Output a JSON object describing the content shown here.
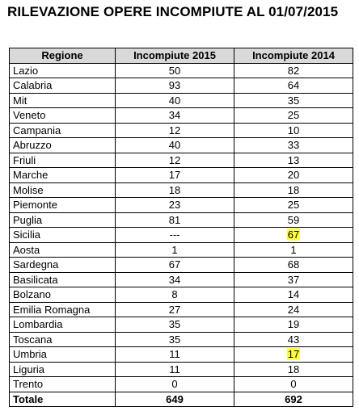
{
  "title": "RILEVAZIONE OPERE INCOMPIUTE AL 01/07/2015",
  "highlight_color": "#ffff44",
  "header_color": "#d9d9d9",
  "table": {
    "headers": [
      "Regione",
      "Incompiute 2015",
      "Incompiute 2014"
    ],
    "rows": [
      {
        "region": "Lazio",
        "v2015": "50",
        "v2014": "82",
        "highlight2014": false
      },
      {
        "region": "Calabria",
        "v2015": "93",
        "v2014": "64",
        "highlight2014": false
      },
      {
        "region": "Mit",
        "v2015": "40",
        "v2014": "35",
        "highlight2014": false
      },
      {
        "region": "Veneto",
        "v2015": "34",
        "v2014": "25",
        "highlight2014": false
      },
      {
        "region": "Campania",
        "v2015": "12",
        "v2014": "10",
        "highlight2014": false
      },
      {
        "region": "Abruzzo",
        "v2015": "40",
        "v2014": "33",
        "highlight2014": false
      },
      {
        "region": "Friuli",
        "v2015": "12",
        "v2014": "13",
        "highlight2014": false
      },
      {
        "region": "Marche",
        "v2015": "17",
        "v2014": "20",
        "highlight2014": false
      },
      {
        "region": "Molise",
        "v2015": "18",
        "v2014": "18",
        "highlight2014": false
      },
      {
        "region": "Piemonte",
        "v2015": "23",
        "v2014": "25",
        "highlight2014": false
      },
      {
        "region": "Puglia",
        "v2015": "81",
        "v2014": "59",
        "highlight2014": false
      },
      {
        "region": "Sicilia",
        "v2015": "---",
        "v2014": "67",
        "highlight2014": true
      },
      {
        "region": "Aosta",
        "v2015": "1",
        "v2014": "1",
        "highlight2014": false
      },
      {
        "region": "Sardegna",
        "v2015": "67",
        "v2014": "68",
        "highlight2014": false
      },
      {
        "region": "Basilicata",
        "v2015": "34",
        "v2014": "37",
        "highlight2014": false
      },
      {
        "region": "Bolzano",
        "v2015": "8",
        "v2014": "14",
        "highlight2014": false
      },
      {
        "region": "Emilia Romagna",
        "v2015": "27",
        "v2014": "24",
        "highlight2014": false
      },
      {
        "region": "Lombardia",
        "v2015": "35",
        "v2014": "19",
        "highlight2014": false
      },
      {
        "region": "Toscana",
        "v2015": "35",
        "v2014": "43",
        "highlight2014": false
      },
      {
        "region": "Umbria",
        "v2015": "11",
        "v2014": "17",
        "highlight2014": true
      },
      {
        "region": "Liguria",
        "v2015": "11",
        "v2014": "18",
        "highlight2014": false
      },
      {
        "region": "Trento",
        "v2015": "0",
        "v2014": "0",
        "highlight2014": false
      }
    ],
    "total": {
      "label": "Totale",
      "v2015": "649",
      "v2014": "692"
    }
  }
}
